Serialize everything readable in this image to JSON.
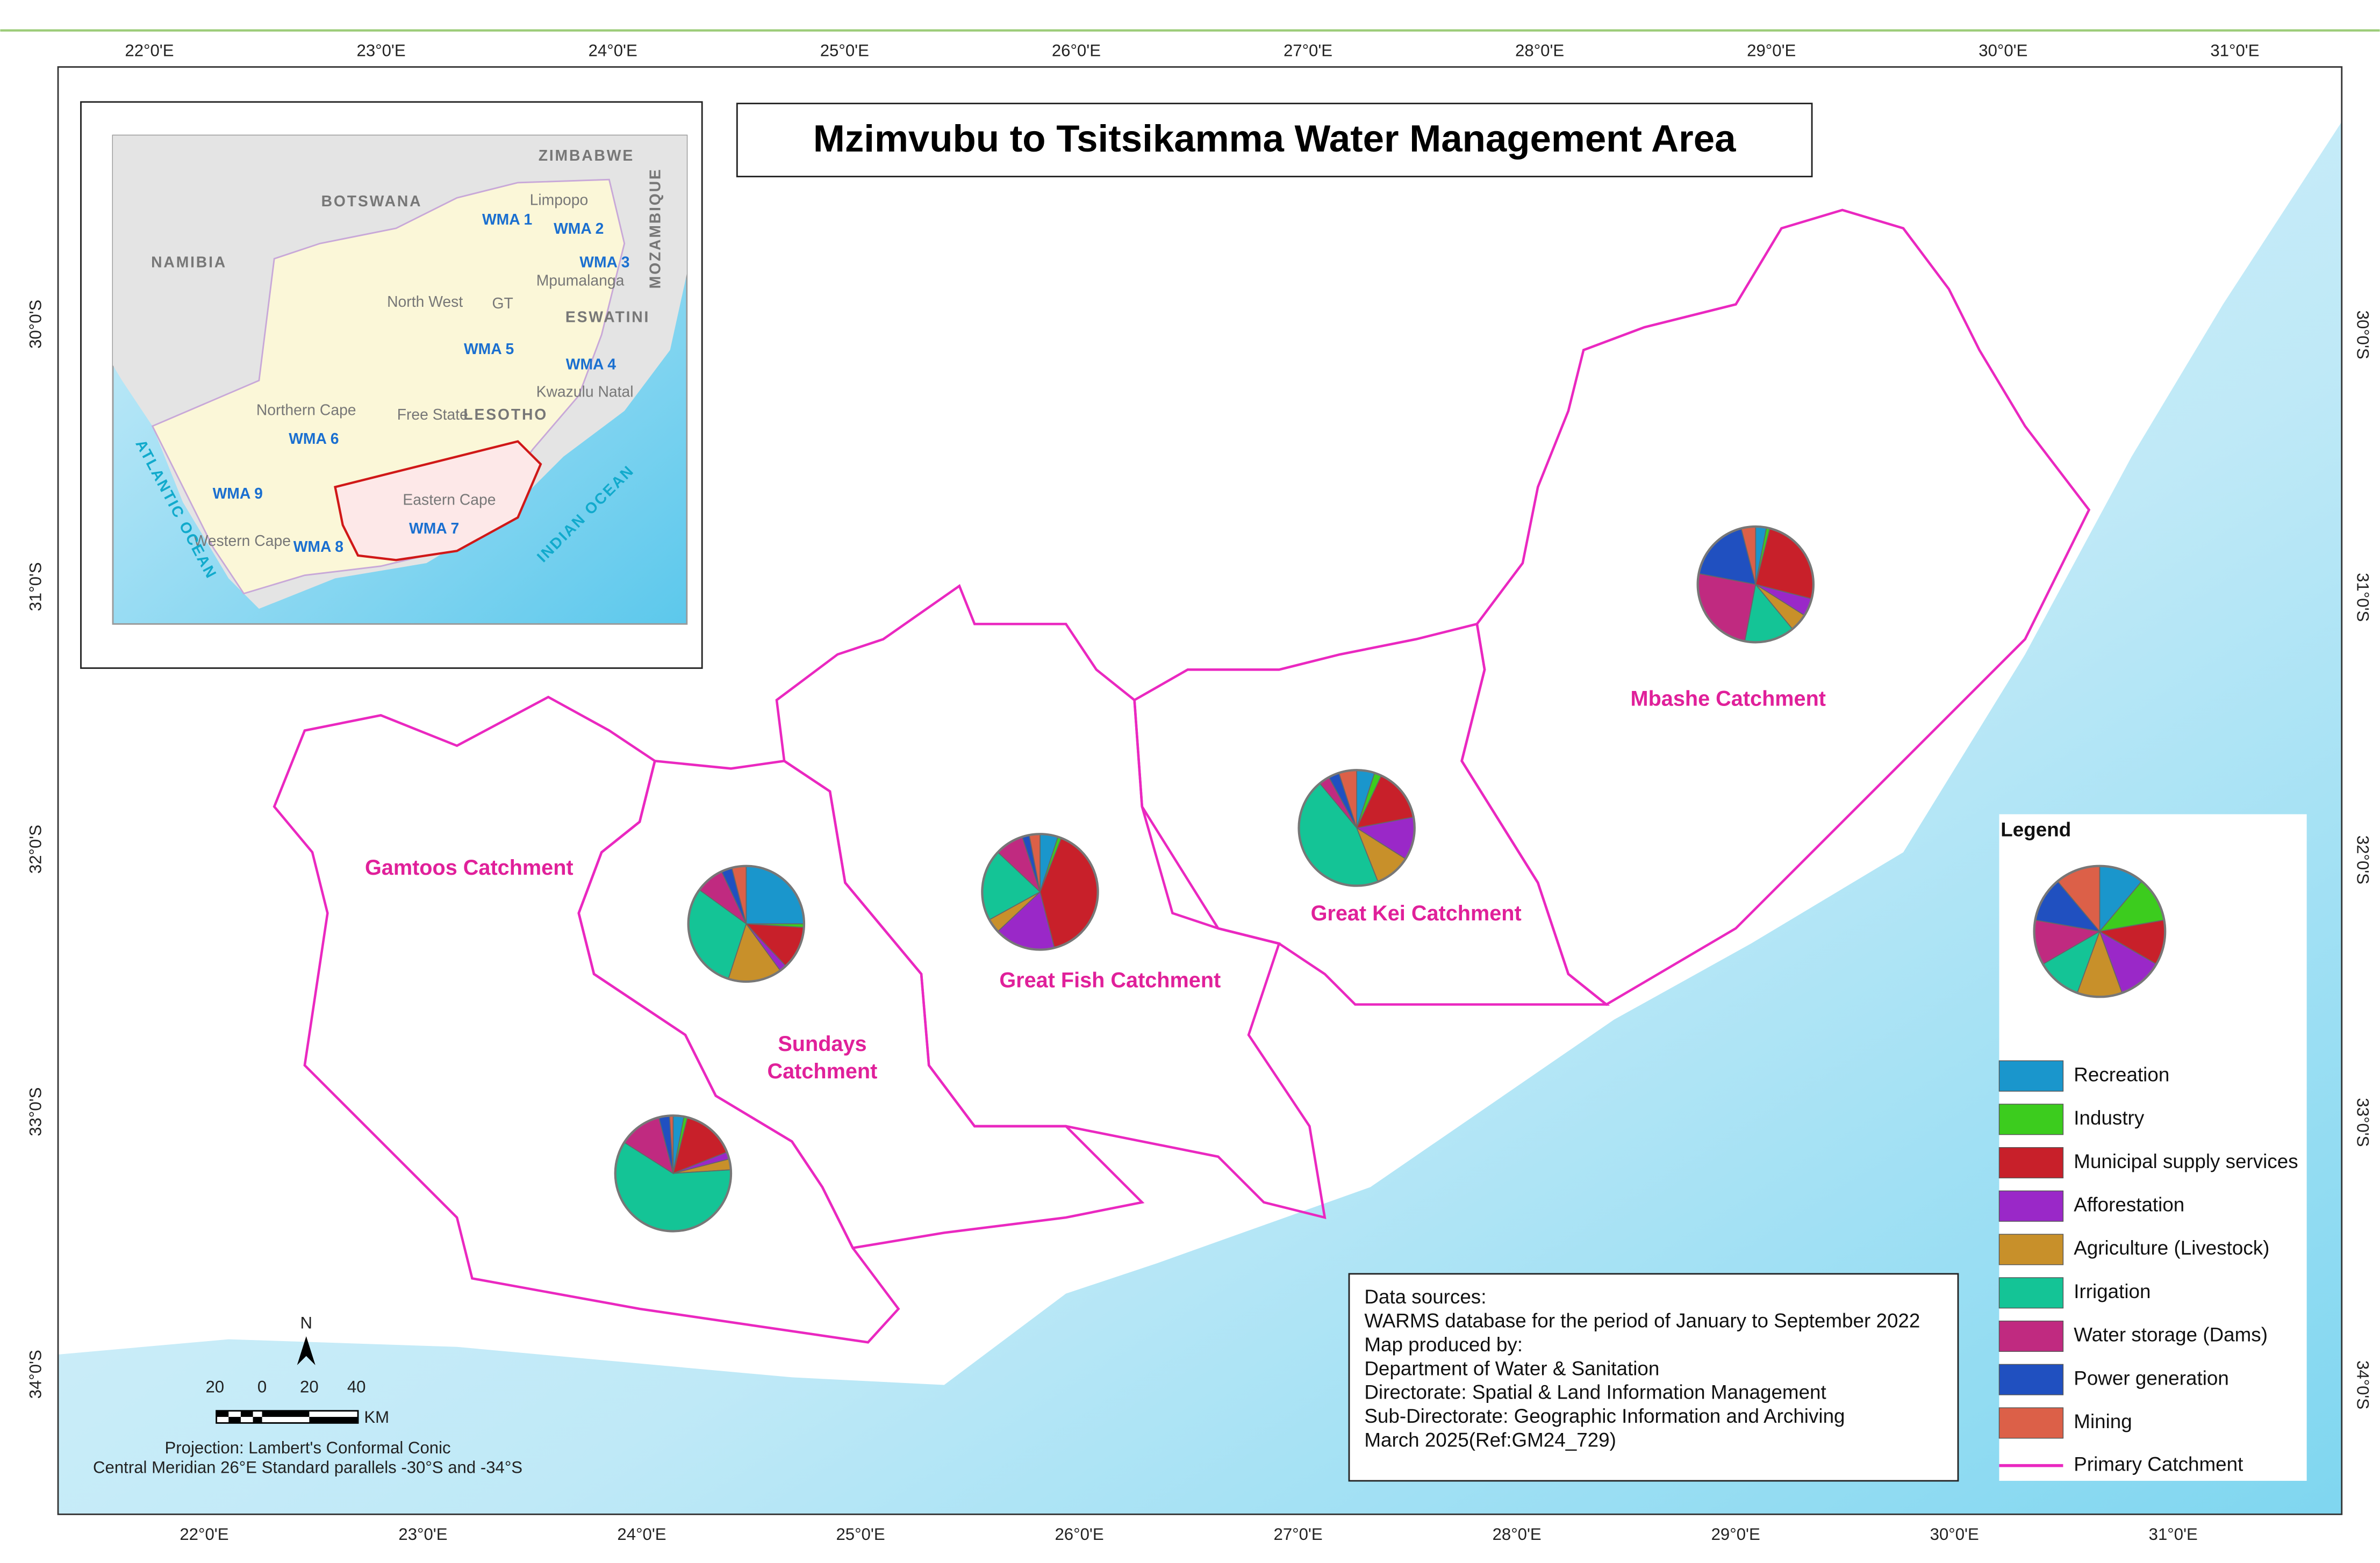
{
  "title": "Mzimvubu to Tsitsikamma Water Management Area",
  "graticule": {
    "top": [
      "22°0'E",
      "23°0'E",
      "24°0'E",
      "25°0'E",
      "26°0'E",
      "27°0'E",
      "28°0'E",
      "29°0'E",
      "30°0'E",
      "31°0'E"
    ],
    "bottom": [
      "22°0'E",
      "23°0'E",
      "24°0'E",
      "25°0'E",
      "26°0'E",
      "27°0'E",
      "28°0'E",
      "29°0'E",
      "30°0'E",
      "31°0'E"
    ],
    "left": [
      "30°0'S",
      "31°0'S",
      "32°0'S",
      "33°0'S",
      "34°0'S"
    ],
    "right": [
      "30°0'S",
      "31°0'S",
      "32°0'S",
      "33°0'S",
      "34°0'S"
    ]
  },
  "catchments": [
    {
      "name": "Mbashe Catchment",
      "pie": [
        3,
        1,
        25,
        5,
        5,
        14,
        25,
        18,
        4
      ]
    },
    {
      "name": "Great Kei Catchment",
      "pie": [
        5,
        2,
        15,
        12,
        10,
        45,
        3,
        3,
        5
      ]
    },
    {
      "name": "Great Fish Catchment",
      "pie": [
        5,
        1,
        40,
        17,
        4,
        20,
        8,
        2,
        3
      ]
    },
    {
      "name": "Sundays Catchment",
      "pie": [
        25,
        1,
        12,
        2,
        15,
        30,
        8,
        3,
        4
      ]
    },
    {
      "name": "Gamtoos Catchment",
      "pie": [
        3,
        1,
        15,
        2,
        3,
        60,
        12,
        3,
        1
      ]
    }
  ],
  "legend": {
    "title": "Legend",
    "pie": [
      11,
      11,
      11,
      11,
      11,
      11,
      11,
      11,
      11
    ],
    "items": [
      {
        "label": "Recreation",
        "color": "#1a96cc"
      },
      {
        "label": "Industry",
        "color": "#3ccc1e"
      },
      {
        "label": "Municipal supply services",
        "color": "#c8202a"
      },
      {
        "label": "Afforestation",
        "color": "#9a28c8"
      },
      {
        "label": "Agriculture (Livestock)",
        "color": "#c8902a"
      },
      {
        "label": "Irrigation",
        "color": "#14c496"
      },
      {
        "label": "Water storage (Dams)",
        "color": "#c02a80"
      },
      {
        "label": "Power generation",
        "color": "#2050c0"
      },
      {
        "label": "Mining",
        "color": "#dc6048"
      }
    ],
    "line": "Primary Catchment"
  },
  "inset": {
    "countries": [
      "BOTSWANA",
      "NAMIBIA",
      "MOZAMBIQUE",
      "ZIMBABWE",
      "LESOTHO",
      "ESWATINI"
    ],
    "provinces": [
      "Limpopo",
      "Mpumalanga",
      "North West",
      "Free State",
      "Kwazulu Natal",
      "Northern Cape",
      "Eastern Cape",
      "Western Cape",
      "GT"
    ],
    "wmas": [
      "WMA 1",
      "WMA 2",
      "WMA 3",
      "WMA 4",
      "WMA 5",
      "WMA 6",
      "WMA 7",
      "WMA 8",
      "WMA 9"
    ],
    "oceans": [
      "ATLANTIC OCEAN",
      "INDIAN OCEAN"
    ]
  },
  "sources": [
    "Data sources:",
    "WARMS database for the period of January to September 2022",
    "Map produced by:",
    "Department of Water & Sanitation",
    "Directorate: Spatial & Land Information Management",
    "Sub-Directorate: Geographic Information and Archiving",
    "March 2025(Ref:GM24_729)"
  ],
  "scalebar": {
    "labels": [
      "20",
      "0",
      "20",
      "40"
    ],
    "unit": "KM",
    "north": "N"
  },
  "projection": [
    "Projection:  Lambert's Conformal Conic",
    "Central Meridian 26°E Standard parallels -30°S and -34°S"
  ]
}
